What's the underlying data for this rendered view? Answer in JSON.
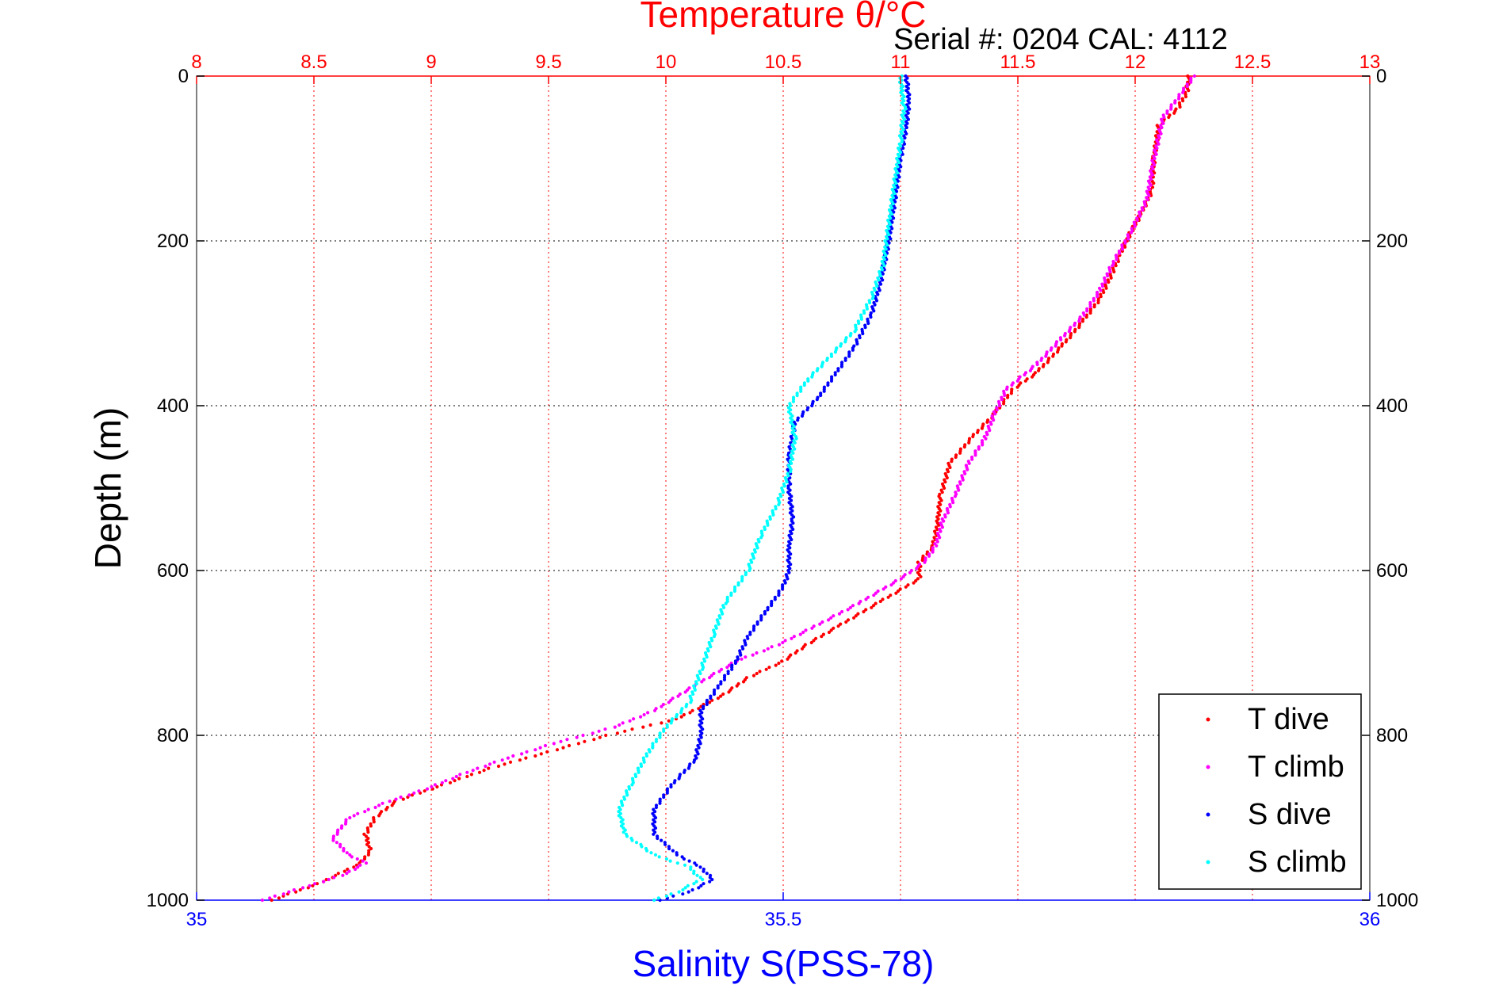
{
  "chart_data": {
    "type": "scatter",
    "title": "Temperature θ/°C",
    "subtitle": "Serial #: 0204  CAL: 4112",
    "ylabel": "Depth (m)",
    "x2label": "Salinity S(PSS-78)",
    "xlim_top": [
      8,
      13
    ],
    "xlim_bottom": [
      35,
      36
    ],
    "ylim": [
      0,
      1000
    ],
    "y_inverted": true,
    "grid": true,
    "legend_position": "bottom-right",
    "top_ticks": [
      "8",
      "8.5",
      "9",
      "9.5",
      "10",
      "10.5",
      "11",
      "11.5",
      "12",
      "12.5",
      "13"
    ],
    "bottom_ticks": [
      "35",
      "35.5",
      "36"
    ],
    "y_ticks": [
      "0",
      "200",
      "400",
      "600",
      "800",
      "1000"
    ],
    "series": [
      {
        "name": "T dive",
        "axis": "top",
        "color": "#ff0000",
        "points": [
          [
            12.23,
            0
          ],
          [
            12.22,
            20
          ],
          [
            12.18,
            40
          ],
          [
            12.1,
            60
          ],
          [
            12.08,
            100
          ],
          [
            12.07,
            140
          ],
          [
            12.02,
            170
          ],
          [
            11.98,
            190
          ],
          [
            11.93,
            220
          ],
          [
            11.9,
            240
          ],
          [
            11.85,
            270
          ],
          [
            11.77,
            300
          ],
          [
            11.68,
            330
          ],
          [
            11.58,
            360
          ],
          [
            11.48,
            380
          ],
          [
            11.4,
            410
          ],
          [
            11.3,
            440
          ],
          [
            11.21,
            470
          ],
          [
            11.17,
            510
          ],
          [
            11.16,
            540
          ],
          [
            11.14,
            570
          ],
          [
            11.08,
            590
          ],
          [
            11.08,
            610
          ],
          [
            10.9,
            640
          ],
          [
            10.72,
            670
          ],
          [
            10.6,
            690
          ],
          [
            10.5,
            710
          ],
          [
            10.35,
            730
          ],
          [
            10.25,
            750
          ],
          [
            10.05,
            780
          ],
          [
            9.75,
            800
          ],
          [
            9.5,
            820
          ],
          [
            9.25,
            840
          ],
          [
            9.05,
            860
          ],
          [
            8.85,
            880
          ],
          [
            8.76,
            900
          ],
          [
            8.72,
            920
          ],
          [
            8.74,
            940
          ],
          [
            8.7,
            955
          ],
          [
            8.52,
            980
          ],
          [
            8.32,
            1000
          ]
        ]
      },
      {
        "name": "T climb",
        "axis": "top",
        "color": "#ff00ff",
        "points": [
          [
            12.25,
            0
          ],
          [
            12.2,
            20
          ],
          [
            12.12,
            50
          ],
          [
            12.08,
            100
          ],
          [
            12.05,
            150
          ],
          [
            11.98,
            190
          ],
          [
            11.9,
            230
          ],
          [
            11.85,
            260
          ],
          [
            11.78,
            290
          ],
          [
            11.68,
            320
          ],
          [
            11.58,
            350
          ],
          [
            11.45,
            380
          ],
          [
            11.4,
            410
          ],
          [
            11.36,
            440
          ],
          [
            11.29,
            470
          ],
          [
            11.23,
            510
          ],
          [
            11.18,
            540
          ],
          [
            11.15,
            570
          ],
          [
            11.1,
            590
          ],
          [
            11.0,
            610
          ],
          [
            10.82,
            640
          ],
          [
            10.62,
            670
          ],
          [
            10.48,
            690
          ],
          [
            10.3,
            710
          ],
          [
            10.12,
            740
          ],
          [
            9.95,
            770
          ],
          [
            9.78,
            790
          ],
          [
            9.52,
            810
          ],
          [
            9.3,
            830
          ],
          [
            9.15,
            845
          ],
          [
            8.98,
            865
          ],
          [
            8.82,
            880
          ],
          [
            8.65,
            900
          ],
          [
            8.58,
            925
          ],
          [
            8.65,
            945
          ],
          [
            8.72,
            955
          ],
          [
            8.62,
            970
          ],
          [
            8.45,
            985
          ],
          [
            8.28,
            1000
          ]
        ]
      },
      {
        "name": "S dive",
        "axis": "bottom",
        "color": "#0000ff",
        "points": [
          [
            35.605,
            0
          ],
          [
            35.607,
            30
          ],
          [
            35.605,
            60
          ],
          [
            35.6,
            100
          ],
          [
            35.595,
            150
          ],
          [
            35.59,
            200
          ],
          [
            35.583,
            250
          ],
          [
            35.575,
            290
          ],
          [
            35.56,
            330
          ],
          [
            35.545,
            360
          ],
          [
            35.53,
            390
          ],
          [
            35.51,
            420
          ],
          [
            35.505,
            460
          ],
          [
            35.505,
            500
          ],
          [
            35.508,
            540
          ],
          [
            35.505,
            570
          ],
          [
            35.505,
            600
          ],
          [
            35.5,
            620
          ],
          [
            35.485,
            650
          ],
          [
            35.47,
            680
          ],
          [
            35.46,
            710
          ],
          [
            35.445,
            740
          ],
          [
            35.43,
            770
          ],
          [
            35.43,
            800
          ],
          [
            35.425,
            830
          ],
          [
            35.405,
            860
          ],
          [
            35.39,
            890
          ],
          [
            35.39,
            920
          ],
          [
            35.41,
            945
          ],
          [
            35.43,
            960
          ],
          [
            35.44,
            975
          ],
          [
            35.42,
            990
          ],
          [
            35.395,
            1000
          ]
        ]
      },
      {
        "name": "S climb",
        "axis": "bottom",
        "color": "#00ffff",
        "points": [
          [
            35.6,
            0
          ],
          [
            35.603,
            40
          ],
          [
            35.6,
            80
          ],
          [
            35.595,
            130
          ],
          [
            35.59,
            180
          ],
          [
            35.585,
            230
          ],
          [
            35.575,
            270
          ],
          [
            35.56,
            310
          ],
          [
            35.54,
            340
          ],
          [
            35.52,
            370
          ],
          [
            35.505,
            400
          ],
          [
            35.51,
            440
          ],
          [
            35.505,
            480
          ],
          [
            35.495,
            520
          ],
          [
            35.48,
            560
          ],
          [
            35.47,
            600
          ],
          [
            35.45,
            640
          ],
          [
            35.44,
            680
          ],
          [
            35.43,
            720
          ],
          [
            35.42,
            760
          ],
          [
            35.4,
            790
          ],
          [
            35.385,
            820
          ],
          [
            35.37,
            860
          ],
          [
            35.36,
            890
          ],
          [
            35.365,
            920
          ],
          [
            35.39,
            945
          ],
          [
            35.42,
            960
          ],
          [
            35.43,
            975
          ],
          [
            35.41,
            990
          ],
          [
            35.39,
            1000
          ]
        ]
      }
    ]
  }
}
